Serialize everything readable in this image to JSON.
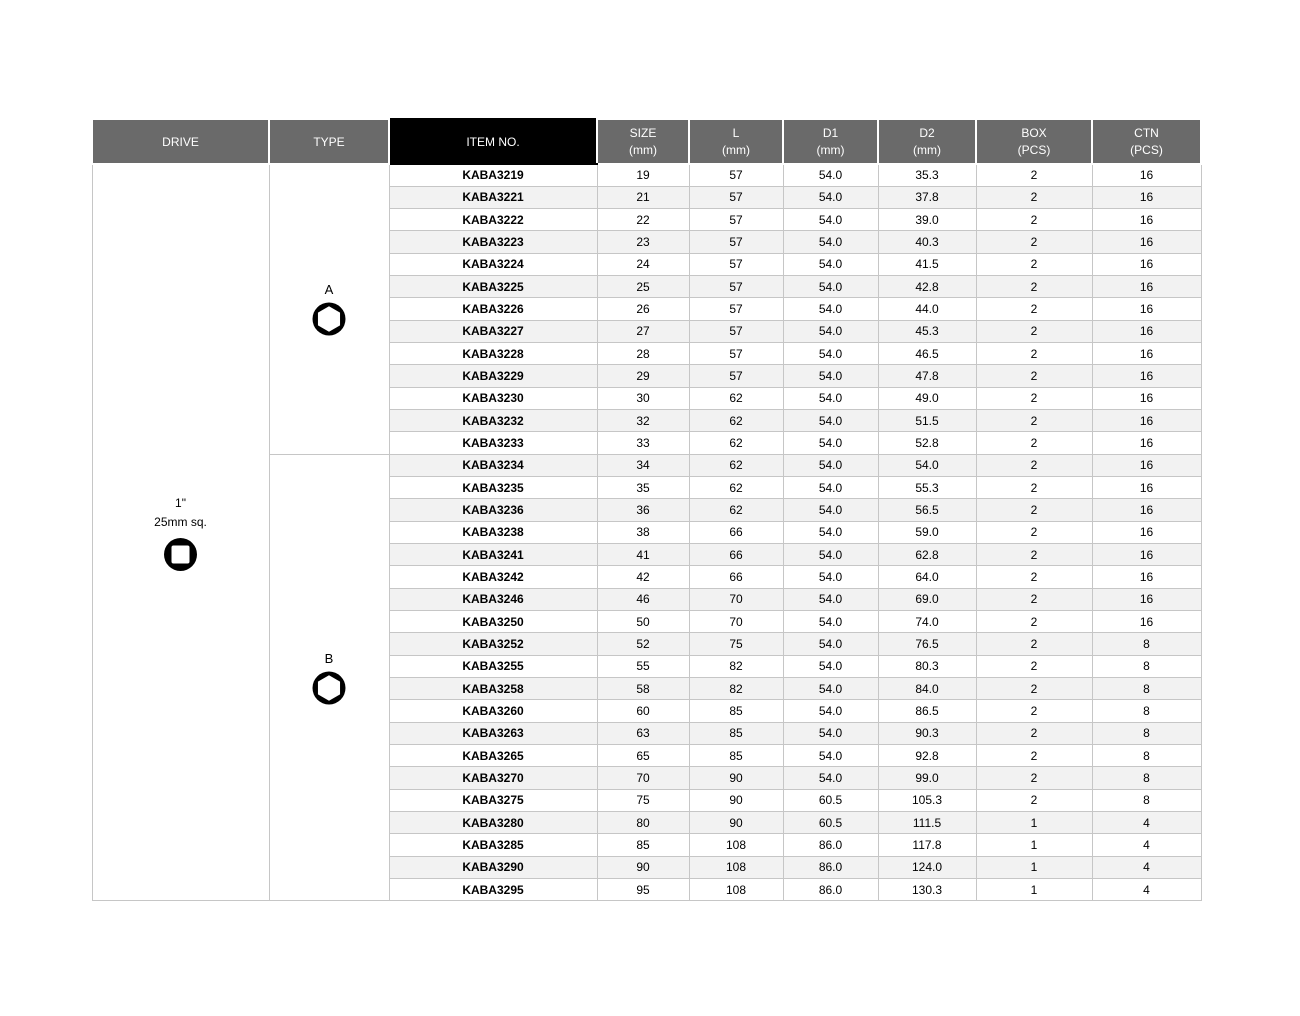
{
  "colors": {
    "header_bg": "#6a6a6a",
    "item_header_bg": "#000000",
    "header_text": "#ffffff",
    "alt_row_bg": "#f2f2f2",
    "grid_border": "#c6c6c6",
    "body_text": "#000000"
  },
  "table": {
    "headers": {
      "drive": "DRIVE",
      "type": "TYPE",
      "item_no": "ITEM NO.",
      "cols": [
        {
          "line1": "SIZE",
          "line2": "(mm)"
        },
        {
          "line1": "L",
          "line2": "(mm)"
        },
        {
          "line1": "D1",
          "line2": "(mm)"
        },
        {
          "line1": "D2",
          "line2": "(mm)"
        },
        {
          "line1": "BOX",
          "line2": "(PCS)"
        },
        {
          "line1": "CTN",
          "line2": "(PCS)"
        }
      ]
    },
    "drive": {
      "line1": "1\"",
      "line2": "25mm sq.",
      "icon": "square-drive-icon"
    },
    "groups": [
      {
        "type_label": "A",
        "icon": "hexagon-socket-icon",
        "rows": [
          [
            "KABA3219",
            "19",
            "57",
            "54.0",
            "35.3",
            "2",
            "16"
          ],
          [
            "KABA3221",
            "21",
            "57",
            "54.0",
            "37.8",
            "2",
            "16"
          ],
          [
            "KABA3222",
            "22",
            "57",
            "54.0",
            "39.0",
            "2",
            "16"
          ],
          [
            "KABA3223",
            "23",
            "57",
            "54.0",
            "40.3",
            "2",
            "16"
          ],
          [
            "KABA3224",
            "24",
            "57",
            "54.0",
            "41.5",
            "2",
            "16"
          ],
          [
            "KABA3225",
            "25",
            "57",
            "54.0",
            "42.8",
            "2",
            "16"
          ],
          [
            "KABA3226",
            "26",
            "57",
            "54.0",
            "44.0",
            "2",
            "16"
          ],
          [
            "KABA3227",
            "27",
            "57",
            "54.0",
            "45.3",
            "2",
            "16"
          ],
          [
            "KABA3228",
            "28",
            "57",
            "54.0",
            "46.5",
            "2",
            "16"
          ],
          [
            "KABA3229",
            "29",
            "57",
            "54.0",
            "47.8",
            "2",
            "16"
          ],
          [
            "KABA3230",
            "30",
            "62",
            "54.0",
            "49.0",
            "2",
            "16"
          ],
          [
            "KABA3232",
            "32",
            "62",
            "54.0",
            "51.5",
            "2",
            "16"
          ],
          [
            "KABA3233",
            "33",
            "62",
            "54.0",
            "52.8",
            "2",
            "16"
          ]
        ]
      },
      {
        "type_label": "B",
        "icon": "hexagon-socket-icon",
        "rows": [
          [
            "KABA3234",
            "34",
            "62",
            "54.0",
            "54.0",
            "2",
            "16"
          ],
          [
            "KABA3235",
            "35",
            "62",
            "54.0",
            "55.3",
            "2",
            "16"
          ],
          [
            "KABA3236",
            "36",
            "62",
            "54.0",
            "56.5",
            "2",
            "16"
          ],
          [
            "KABA3238",
            "38",
            "66",
            "54.0",
            "59.0",
            "2",
            "16"
          ],
          [
            "KABA3241",
            "41",
            "66",
            "54.0",
            "62.8",
            "2",
            "16"
          ],
          [
            "KABA3242",
            "42",
            "66",
            "54.0",
            "64.0",
            "2",
            "16"
          ],
          [
            "KABA3246",
            "46",
            "70",
            "54.0",
            "69.0",
            "2",
            "16"
          ],
          [
            "KABA3250",
            "50",
            "70",
            "54.0",
            "74.0",
            "2",
            "16"
          ],
          [
            "KABA3252",
            "52",
            "75",
            "54.0",
            "76.5",
            "2",
            "8"
          ],
          [
            "KABA3255",
            "55",
            "82",
            "54.0",
            "80.3",
            "2",
            "8"
          ],
          [
            "KABA3258",
            "58",
            "82",
            "54.0",
            "84.0",
            "2",
            "8"
          ],
          [
            "KABA3260",
            "60",
            "85",
            "54.0",
            "86.5",
            "2",
            "8"
          ],
          [
            "KABA3263",
            "63",
            "85",
            "54.0",
            "90.3",
            "2",
            "8"
          ],
          [
            "KABA3265",
            "65",
            "85",
            "54.0",
            "92.8",
            "2",
            "8"
          ],
          [
            "KABA3270",
            "70",
            "90",
            "54.0",
            "99.0",
            "2",
            "8"
          ],
          [
            "KABA3275",
            "75",
            "90",
            "60.5",
            "105.3",
            "2",
            "8"
          ],
          [
            "KABA3280",
            "80",
            "90",
            "60.5",
            "111.5",
            "1",
            "4"
          ],
          [
            "KABA3285",
            "85",
            "108",
            "86.0",
            "117.8",
            "1",
            "4"
          ],
          [
            "KABA3290",
            "90",
            "108",
            "86.0",
            "124.0",
            "1",
            "4"
          ],
          [
            "KABA3295",
            "95",
            "108",
            "86.0",
            "130.3",
            "1",
            "4"
          ]
        ]
      }
    ]
  }
}
